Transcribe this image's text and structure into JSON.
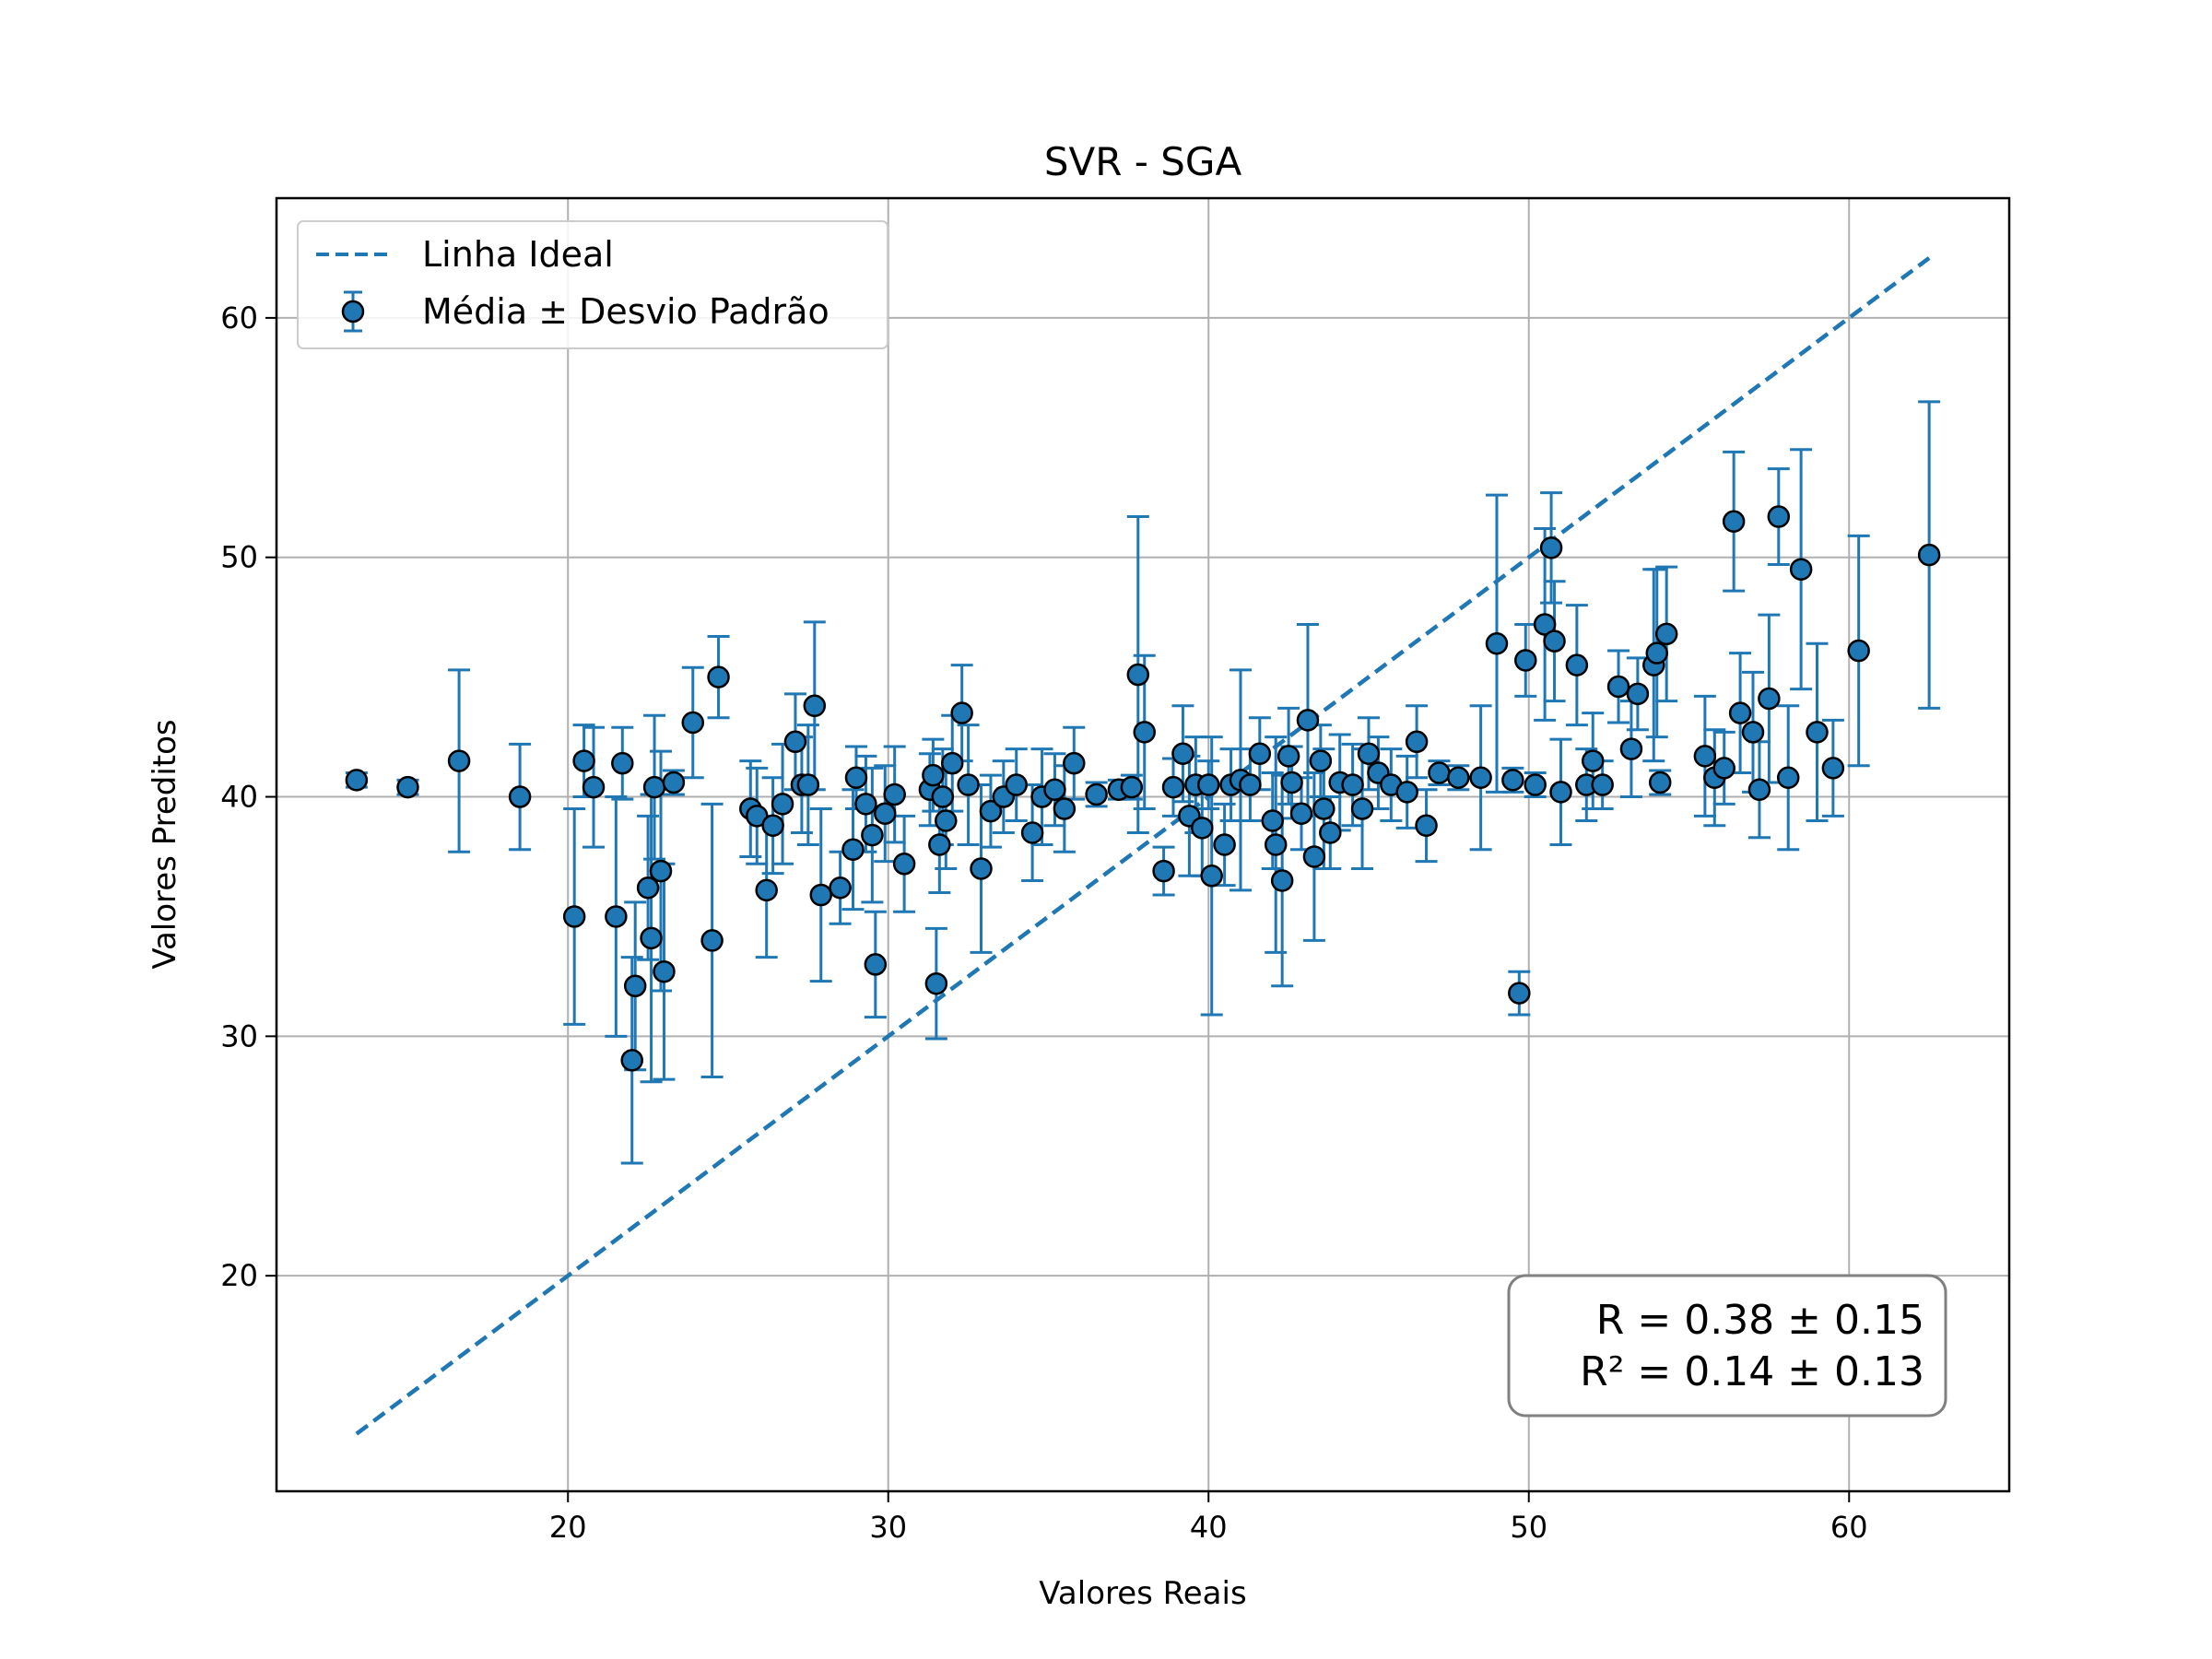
{
  "chart_data": {
    "type": "scatter",
    "title": "SVR - SGA",
    "xlabel": "Valores Reais",
    "ylabel": "Valores Preditos",
    "xlim": [
      10.9,
      65.0
    ],
    "ylim": [
      11.0,
      65.0
    ],
    "xticks": [
      20,
      30,
      40,
      50,
      60
    ],
    "yticks": [
      20,
      30,
      40,
      50,
      60
    ],
    "grid": true,
    "legend": {
      "placement": "top-left",
      "entries": [
        {
          "label": "Linha Ideal",
          "kind": "dashed-line"
        },
        {
          "label": "Média ± Desvio Padrão",
          "kind": "errorbar-marker"
        }
      ]
    },
    "stats_box": {
      "placement": "bottom-right",
      "lines": [
        "R = 0.38 ± 0.15",
        "R² = 0.14 ± 0.13"
      ]
    },
    "colors": {
      "series": "#1f77b4",
      "marker_face": "#1f77b4",
      "marker_edge": "#000000",
      "ideal_line": "#1f77b4",
      "grid": "#b0b0b0",
      "stats_border": "#808080"
    },
    "ideal_line": {
      "x": [
        13.4,
        62.5
      ],
      "y": [
        13.4,
        62.5
      ]
    },
    "series": [
      {
        "name": "Média ± Desvio Padrão",
        "x": [
          13.4,
          15.0,
          16.6,
          18.5,
          20.2,
          20.5,
          20.8,
          21.5,
          21.7,
          22.0,
          22.1,
          22.5,
          22.6,
          22.7,
          22.9,
          23.0,
          23.3,
          23.9,
          24.5,
          24.7,
          25.7,
          25.9,
          26.2,
          26.4,
          26.7,
          27.1,
          27.3,
          27.5,
          27.7,
          27.9,
          28.5,
          28.9,
          29.0,
          29.3,
          29.5,
          29.6,
          29.9,
          30.2,
          30.5,
          31.3,
          31.4,
          31.5,
          31.6,
          31.7,
          31.8,
          32.0,
          32.3,
          32.5,
          32.9,
          33.2,
          33.6,
          34.0,
          34.5,
          34.8,
          35.2,
          35.5,
          35.8,
          36.5,
          37.2,
          37.6,
          37.8,
          38.0,
          38.6,
          38.9,
          39.2,
          39.4,
          39.6,
          39.8,
          40.0,
          40.1,
          40.5,
          40.7,
          41.0,
          41.3,
          41.6,
          42.0,
          42.1,
          42.3,
          42.5,
          42.6,
          42.9,
          43.1,
          43.3,
          43.5,
          43.6,
          43.8,
          44.1,
          44.5,
          44.8,
          45.0,
          45.3,
          45.7,
          46.2,
          46.5,
          46.8,
          47.2,
          47.8,
          48.5,
          49.0,
          49.5,
          49.7,
          49.9,
          50.2,
          50.5,
          50.7,
          50.8,
          51.0,
          51.5,
          51.8,
          52.0,
          52.3,
          52.8,
          53.2,
          53.4,
          53.9,
          54.0,
          54.1,
          54.3,
          55.5,
          55.8,
          56.1,
          56.4,
          56.6,
          57.0,
          57.2,
          57.5,
          57.8,
          58.1,
          58.5,
          59.0,
          59.5,
          60.3,
          62.5
        ],
        "y": [
          40.7,
          40.4,
          41.5,
          40.0,
          35.0,
          41.5,
          40.4,
          35.0,
          41.4,
          29.0,
          32.1,
          36.2,
          34.1,
          40.4,
          36.9,
          32.7,
          40.6,
          43.1,
          34.0,
          45.0,
          39.5,
          39.2,
          36.1,
          38.8,
          39.7,
          42.3,
          40.5,
          40.5,
          43.8,
          35.9,
          36.2,
          37.8,
          40.8,
          39.7,
          38.4,
          33.0,
          39.3,
          40.1,
          37.2,
          40.3,
          40.9,
          32.2,
          38.0,
          40.0,
          39.0,
          41.4,
          43.5,
          40.5,
          37.0,
          39.4,
          40.0,
          40.5,
          38.5,
          40.0,
          40.3,
          39.5,
          41.4,
          40.1,
          40.3,
          40.4,
          45.1,
          42.7,
          36.9,
          40.4,
          41.8,
          39.2,
          40.5,
          38.7,
          40.5,
          36.7,
          38.0,
          40.5,
          40.7,
          40.5,
          41.8,
          39.0,
          38.0,
          36.5,
          41.7,
          40.6,
          39.3,
          43.2,
          37.5,
          41.5,
          39.5,
          38.5,
          40.6,
          40.5,
          39.5,
          41.8,
          41.0,
          40.5,
          40.2,
          42.3,
          38.8,
          41.0,
          40.8,
          40.8,
          46.4,
          40.7,
          31.8,
          45.7,
          40.5,
          47.2,
          50.4,
          46.5,
          40.2,
          45.5,
          40.5,
          41.5,
          40.5,
          44.6,
          42.0,
          44.3,
          45.5,
          46.0,
          40.6,
          46.8,
          41.7,
          40.8,
          41.2,
          51.5,
          43.5,
          42.7,
          40.3,
          44.1,
          51.7,
          40.8,
          49.5,
          42.7,
          41.2,
          46.1,
          50.1
        ],
        "err": [
          0.3,
          0.3,
          3.8,
          2.2,
          4.5,
          1.5,
          2.5,
          5.0,
          1.5,
          4.3,
          3.5,
          3.0,
          6.0,
          3.0,
          5.0,
          4.5,
          0.5,
          2.3,
          5.7,
          1.7,
          2.0,
          2.0,
          2.8,
          2.0,
          2.5,
          2.0,
          2.0,
          2.5,
          3.5,
          3.6,
          1.5,
          2.5,
          1.3,
          2.0,
          2.8,
          2.2,
          2.0,
          2.0,
          2.0,
          1.5,
          1.5,
          2.3,
          2.0,
          2.0,
          2.0,
          2.0,
          2.0,
          2.5,
          3.5,
          1.5,
          1.5,
          1.5,
          2.0,
          2.0,
          1.5,
          1.8,
          1.5,
          0.5,
          0.4,
          0.5,
          6.6,
          3.2,
          1.0,
          1.2,
          2.0,
          2.5,
          2.0,
          2.0,
          1.0,
          5.8,
          1.7,
          1.5,
          4.6,
          1.5,
          1.5,
          2.0,
          4.5,
          4.4,
          2.0,
          1.5,
          1.5,
          4.0,
          3.5,
          1.5,
          2.5,
          1.5,
          2.0,
          1.7,
          2.5,
          1.5,
          1.5,
          1.5,
          1.5,
          1.5,
          1.5,
          0.5,
          0.5,
          3.0,
          6.2,
          0.5,
          0.9,
          1.5,
          0.5,
          4.0,
          2.3,
          2.5,
          2.2,
          2.5,
          1.5,
          2.0,
          1.0,
          1.5,
          2.0,
          1.5,
          4.0,
          3.5,
          0.5,
          2.8,
          2.5,
          2.0,
          1.5,
          2.9,
          2.5,
          2.5,
          2.0,
          3.5,
          2.0,
          3.0,
          5.0,
          3.7,
          2.0,
          4.8,
          6.4
        ]
      }
    ]
  }
}
